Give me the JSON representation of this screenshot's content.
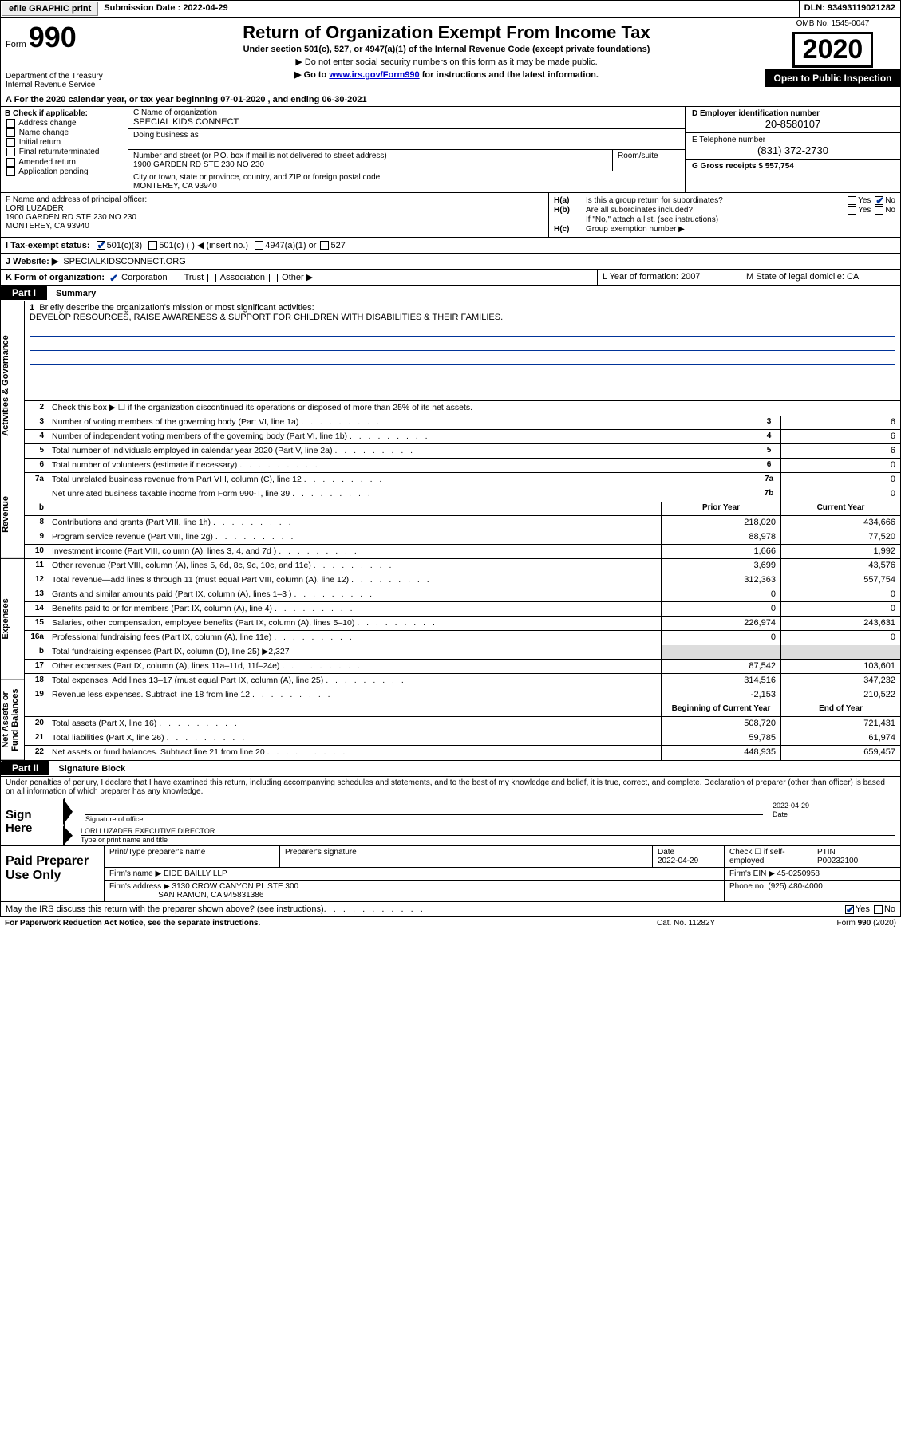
{
  "meta": {
    "efile_label": "efile GRAPHIC print",
    "submission_date_label": "Submission Date : 2022-04-29",
    "dln_label": "DLN: 93493119021282",
    "omb": "OMB No. 1545-0047",
    "form_word": "Form",
    "form_num": "990",
    "title": "Return of Organization Exempt From Income Tax",
    "subtitle": "Under section 501(c), 527, or 4947(a)(1) of the Internal Revenue Code (except private foundations)",
    "note1": "▶ Do not enter social security numbers on this form as it may be made public.",
    "note2_pre": "▶ Go to ",
    "note2_link": "www.irs.gov/Form990",
    "note2_post": " for instructions and the latest information.",
    "year": "2020",
    "open_pub": "Open to Public Inspection",
    "dept": "Department of the Treasury\nInternal Revenue Service"
  },
  "lineA": "A For the 2020 calendar year, or tax year beginning 07-01-2020    , and ending 06-30-2021",
  "sectionB": {
    "label": "B Check if applicable:",
    "opts": [
      "Address change",
      "Name change",
      "Initial return",
      "Final return/terminated",
      "Amended return",
      "Application pending"
    ]
  },
  "sectionC": {
    "name_lbl": "C Name of organization",
    "name": "SPECIAL KIDS CONNECT",
    "dba_lbl": "Doing business as",
    "street_lbl": "Number and street (or P.O. box if mail is not delivered to street address)",
    "room_lbl": "Room/suite",
    "street": "1900 GARDEN RD STE 230 NO 230",
    "city_lbl": "City or town, state or province, country, and ZIP or foreign postal code",
    "city": "MONTEREY, CA  93940"
  },
  "sectionD": {
    "lbl": "D Employer identification number",
    "val": "20-8580107"
  },
  "sectionE": {
    "lbl": "E Telephone number",
    "val": "(831) 372-2730"
  },
  "sectionG": {
    "lbl": "G Gross receipts $ 557,754"
  },
  "sectionF": {
    "lbl": "F  Name and address of principal officer:",
    "name": "LORI LUZADER",
    "addr1": "1900 GARDEN RD STE 230 NO 230",
    "addr2": "MONTEREY, CA  93940"
  },
  "sectionH": {
    "a_lbl": "H(a)",
    "a_text": "Is this a group return for subordinates?",
    "a_yes": "Yes",
    "a_no": "No",
    "b_lbl": "H(b)",
    "b_text": "Are all subordinates included?",
    "b_yes": "Yes",
    "b_no": "No",
    "b_note": "If \"No,\" attach a list. (see instructions)",
    "c_lbl": "H(c)",
    "c_text": "Group exemption number ▶"
  },
  "sectionI": {
    "lbl": "I   Tax-exempt status:",
    "o1": "501(c)(3)",
    "o2": "501(c) (   ) ◀ (insert no.)",
    "o3": "4947(a)(1) or",
    "o4": "527"
  },
  "sectionJ": {
    "lbl": "J   Website: ▶",
    "val": "SPECIALKIDSCONNECT.ORG"
  },
  "sectionK": {
    "lbl": "K Form of organization:",
    "o1": "Corporation",
    "o2": "Trust",
    "o3": "Association",
    "o4": "Other ▶"
  },
  "sectionL": {
    "lbl": "L Year of formation: 2007"
  },
  "sectionM": {
    "lbl": "M State of legal domicile: CA"
  },
  "partI": {
    "hdr": "Part I",
    "title": "Summary",
    "tabs": [
      "Activities & Governance",
      "Revenue",
      "Expenses",
      "Net Assets or Fund Balances"
    ],
    "l1_lbl": "1",
    "l1_desc": "Briefly describe the organization's mission or most significant activities:",
    "l1_text": "DEVELOP RESOURCES, RAISE AWARENESS & SUPPORT FOR CHILDREN WITH DISABILITIES & THEIR FAMILIES.",
    "l2_lbl": "2",
    "l2_desc": "Check this box ▶ ☐  if the organization discontinued its operations or disposed of more than 25% of its net assets.",
    "rows_single": [
      {
        "n": "3",
        "desc": "Number of voting members of the governing body (Part VI, line 1a)",
        "k": "3",
        "v": "6"
      },
      {
        "n": "4",
        "desc": "Number of independent voting members of the governing body (Part VI, line 1b)",
        "k": "4",
        "v": "6"
      },
      {
        "n": "5",
        "desc": "Total number of individuals employed in calendar year 2020 (Part V, line 2a)",
        "k": "5",
        "v": "6"
      },
      {
        "n": "6",
        "desc": "Total number of volunteers (estimate if necessary)",
        "k": "6",
        "v": "0"
      },
      {
        "n": "7a",
        "desc": "Total unrelated business revenue from Part VIII, column (C), line 12",
        "k": "7a",
        "v": "0"
      },
      {
        "n": "",
        "desc": "Net unrelated business taxable income from Form 990-T, line 39",
        "k": "7b",
        "v": "0"
      }
    ],
    "col_hdr_b": "b",
    "col_prior": "Prior Year",
    "col_current": "Current Year",
    "rows_rev": [
      {
        "n": "8",
        "desc": "Contributions and grants (Part VIII, line 1h)",
        "py": "218,020",
        "cy": "434,666"
      },
      {
        "n": "9",
        "desc": "Program service revenue (Part VIII, line 2g)",
        "py": "88,978",
        "cy": "77,520"
      },
      {
        "n": "10",
        "desc": "Investment income (Part VIII, column (A), lines 3, 4, and 7d )",
        "py": "1,666",
        "cy": "1,992"
      },
      {
        "n": "11",
        "desc": "Other revenue (Part VIII, column (A), lines 5, 6d, 8c, 9c, 10c, and 11e)",
        "py": "3,699",
        "cy": "43,576"
      },
      {
        "n": "12",
        "desc": "Total revenue—add lines 8 through 11 (must equal Part VIII, column (A), line 12)",
        "py": "312,363",
        "cy": "557,754"
      }
    ],
    "rows_exp": [
      {
        "n": "13",
        "desc": "Grants and similar amounts paid (Part IX, column (A), lines 1–3 )",
        "py": "0",
        "cy": "0"
      },
      {
        "n": "14",
        "desc": "Benefits paid to or for members (Part IX, column (A), line 4)",
        "py": "0",
        "cy": "0"
      },
      {
        "n": "15",
        "desc": "Salaries, other compensation, employee benefits (Part IX, column (A), lines 5–10)",
        "py": "226,974",
        "cy": "243,631"
      },
      {
        "n": "16a",
        "desc": "Professional fundraising fees (Part IX, column (A), line 11e)",
        "py": "0",
        "cy": "0"
      }
    ],
    "l16b_n": "b",
    "l16b_desc": "Total fundraising expenses (Part IX, column (D), line 25) ▶2,327",
    "rows_exp2": [
      {
        "n": "17",
        "desc": "Other expenses (Part IX, column (A), lines 11a–11d, 11f–24e)",
        "py": "87,542",
        "cy": "103,601"
      },
      {
        "n": "18",
        "desc": "Total expenses. Add lines 13–17 (must equal Part IX, column (A), line 25)",
        "py": "314,516",
        "cy": "347,232"
      },
      {
        "n": "19",
        "desc": "Revenue less expenses. Subtract line 18 from line 12",
        "py": "-2,153",
        "cy": "210,522"
      }
    ],
    "col_begin": "Beginning of Current Year",
    "col_end": "End of Year",
    "rows_net": [
      {
        "n": "20",
        "desc": "Total assets (Part X, line 16)",
        "py": "508,720",
        "cy": "721,431"
      },
      {
        "n": "21",
        "desc": "Total liabilities (Part X, line 26)",
        "py": "59,785",
        "cy": "61,974"
      },
      {
        "n": "22",
        "desc": "Net assets or fund balances. Subtract line 21 from line 20",
        "py": "448,935",
        "cy": "659,457"
      }
    ]
  },
  "partII": {
    "hdr": "Part II",
    "title": "Signature Block",
    "perjury": "Under penalties of perjury, I declare that I have examined this return, including accompanying schedules and statements, and to the best of my knowledge and belief, it is true, correct, and complete. Declaration of preparer (other than officer) is based on all information of which preparer has any knowledge.",
    "sign_here": "Sign Here",
    "sig_officer_lbl": "Signature of officer",
    "sig_date": "2022-04-29",
    "date_lbl": "Date",
    "sig_name": "LORI LUZADER  EXECUTIVE DIRECTOR",
    "sig_name_lbl": "Type or print name and title",
    "paid": "Paid Preparer Use Only",
    "pt_name_lbl": "Print/Type preparer's name",
    "pt_sig_lbl": "Preparer's signature",
    "pt_date_lbl": "Date",
    "pt_date": "2022-04-29",
    "pt_check": "Check ☐ if self-employed",
    "ptin_lbl": "PTIN",
    "ptin": "P00232100",
    "firm_name_lbl": "Firm's name    ▶",
    "firm_name": "EIDE BAILLY LLP",
    "firm_ein_lbl": "Firm's EIN ▶",
    "firm_ein": "45-0250958",
    "firm_addr_lbl": "Firm's address ▶",
    "firm_addr1": "3130 CROW CANYON PL STE 300",
    "firm_addr2": "SAN RAMON, CA  945831386",
    "phone_lbl": "Phone no.",
    "phone": "(925) 480-4000",
    "discuss": "May the IRS discuss this return with the preparer shown above? (see instructions)",
    "yes": "Yes",
    "no": "No"
  },
  "footer": {
    "left": "For Paperwork Reduction Act Notice, see the separate instructions.",
    "mid": "Cat. No. 11282Y",
    "right": "Form 990 (2020)"
  }
}
